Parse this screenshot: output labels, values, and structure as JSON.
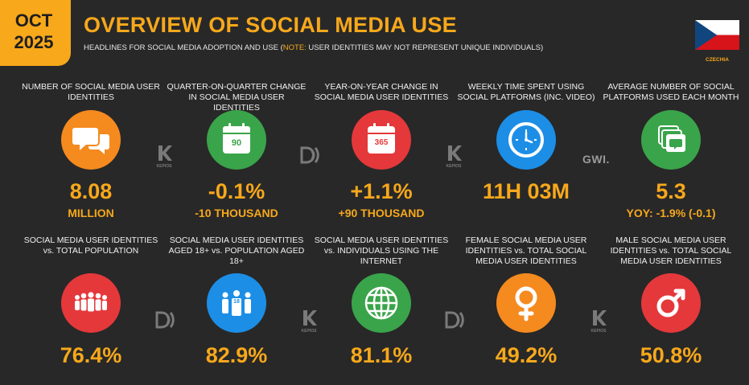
{
  "header": {
    "date_month": "OCT",
    "date_year": "2025",
    "title": "OVERVIEW OF SOCIAL MEDIA USE",
    "subtitle_main": "HEADLINES FOR SOCIAL MEDIA ADOPTION AND USE (",
    "subtitle_note": "NOTE:",
    "subtitle_rest": " USER IDENTITIES MAY NOT REPRESENT UNIQUE INDIVIDUALS)",
    "country": "CZECHIA"
  },
  "colors": {
    "accent": "#f7a81b",
    "background": "#282828",
    "orange": "#f58a1f",
    "green": "#3aa44a",
    "red": "#e5383b",
    "blue": "#1c8ee6"
  },
  "row1": [
    {
      "label": "NUMBER OF SOCIAL MEDIA USER IDENTITIES",
      "value": "8.08",
      "sub": "MILLION",
      "icon": "speech-bubbles-icon"
    },
    {
      "label": "QUARTER-ON-QUARTER CHANGE IN SOCIAL MEDIA USER IDENTITIES",
      "value": "-0.1%",
      "sub": "-10 THOUSAND",
      "icon": "calendar-90-icon",
      "icon_text": "90"
    },
    {
      "label": "YEAR-ON-YEAR CHANGE IN SOCIAL MEDIA USER IDENTITIES",
      "value": "+1.1%",
      "sub": "+90 THOUSAND",
      "icon": "calendar-365-icon",
      "icon_text": "365"
    },
    {
      "label": "WEEKLY TIME SPENT USING SOCIAL PLATFORMS (INC. VIDEO)",
      "value": "11H 03M",
      "sub": "",
      "icon": "clock-icon"
    },
    {
      "label": "AVERAGE NUMBER OF SOCIAL PLATFORMS USED EACH MONTH",
      "value": "5.3",
      "sub": "YOY: -1.9% (-0.1)",
      "icon": "stacked-chat-icon"
    }
  ],
  "row2": [
    {
      "label": "SOCIAL MEDIA USER IDENTITIES vs. TOTAL POPULATION",
      "value": "76.4%",
      "icon": "population-icon"
    },
    {
      "label": "SOCIAL MEDIA USER IDENTITIES AGED 18+ vs. POPULATION AGED 18+",
      "value": "82.9%",
      "icon": "adults-18-icon",
      "icon_text": "18"
    },
    {
      "label": "SOCIAL MEDIA USER IDENTITIES vs. INDIVIDUALS USING THE INTERNET",
      "value": "81.1%",
      "icon": "globe-icon"
    },
    {
      "label": "FEMALE SOCIAL MEDIA USER IDENTITIES vs. TOTAL SOCIAL MEDIA USER IDENTITIES",
      "value": "49.2%",
      "icon": "female-symbol-icon"
    },
    {
      "label": "MALE SOCIAL MEDIA USER IDENTITIES vs. TOTAL SOCIAL MEDIA USER IDENTITIES",
      "value": "50.8%",
      "icon": "male-symbol-icon"
    }
  ],
  "logos": {
    "kepios": "KEPIOS",
    "gwi": "GWI."
  }
}
